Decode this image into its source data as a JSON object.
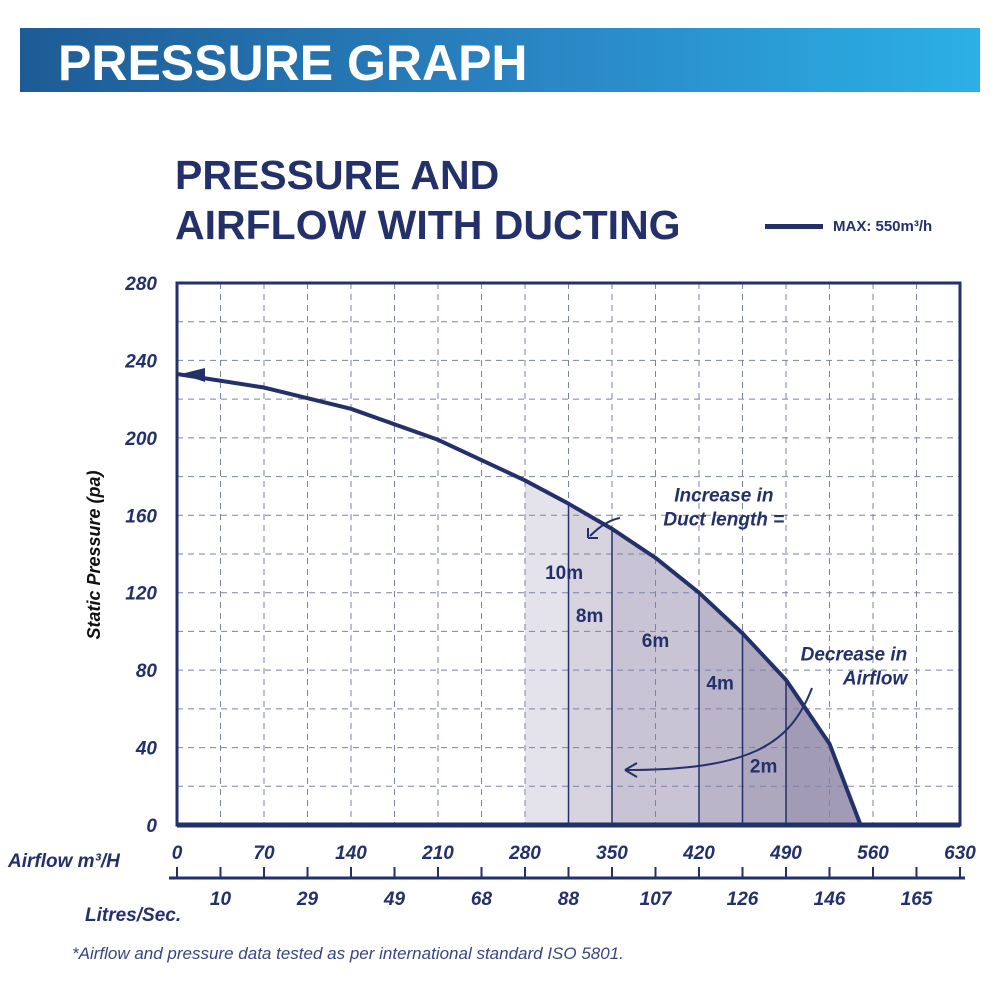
{
  "header": {
    "title": "PRESSURE GRAPH"
  },
  "chart_data": {
    "type": "area",
    "title": [
      "PRESSURE AND",
      "AIRFLOW WITH DUCTING"
    ],
    "legend": {
      "label": "MAX: 550m³/h",
      "placement": "top-right"
    },
    "xlabel": "Airflow m³/H",
    "x2label": "Litres/Sec.",
    "ylabel": "Static Pressure (pa)",
    "xlim": [
      0,
      630
    ],
    "ylim": [
      0,
      280
    ],
    "grid": true,
    "xticks": [
      0,
      70,
      140,
      210,
      280,
      350,
      420,
      490,
      560,
      630
    ],
    "x2ticks": [
      {
        "at": 35,
        "label": "10"
      },
      {
        "at": 105,
        "label": "29"
      },
      {
        "at": 175,
        "label": "49"
      },
      {
        "at": 245,
        "label": "68"
      },
      {
        "at": 315,
        "label": "88"
      },
      {
        "at": 385,
        "label": "107"
      },
      {
        "at": 455,
        "label": "126"
      },
      {
        "at": 525,
        "label": "146"
      },
      {
        "at": 595,
        "label": "165"
      }
    ],
    "yticks": [
      0,
      40,
      80,
      120,
      160,
      200,
      240,
      280
    ],
    "curve": {
      "x": [
        0,
        70,
        140,
        210,
        280,
        315,
        350,
        385,
        420,
        455,
        490,
        525,
        550
      ],
      "y": [
        233,
        226,
        215,
        199,
        178,
        166,
        153,
        138,
        120,
        99,
        75,
        42,
        0
      ]
    },
    "bands": [
      {
        "from": 280,
        "to": 315,
        "label": "10m",
        "color": "#e4e2ea"
      },
      {
        "from": 315,
        "to": 350,
        "label": "8m",
        "color": "#d6d3df"
      },
      {
        "from": 350,
        "to": 420,
        "label": "6m",
        "color": "#c8c4d4"
      },
      {
        "from": 420,
        "to": 455,
        "label": "4m",
        "color": "#bab5c9"
      },
      {
        "from": 455,
        "to": 490,
        "label": "",
        "color": "#aea8bf"
      },
      {
        "from": 490,
        "to": 560,
        "label": "2m",
        "color": "#a19bb5"
      }
    ],
    "band_labels": [
      {
        "label": "10m",
        "x": 297,
        "y": 127
      },
      {
        "label": "8m",
        "x": 332,
        "y": 105
      },
      {
        "label": "6m",
        "x": 385,
        "y": 92
      },
      {
        "label": "4m",
        "x": 437,
        "y": 70
      },
      {
        "label": "2m",
        "x": 472,
        "y": 27
      }
    ],
    "annotations": [
      {
        "text": [
          "Increase in",
          "Duct length ="
        ],
        "x": 440,
        "y": 167
      },
      {
        "text": [
          "Decrease in",
          "Airflow"
        ],
        "x": 590,
        "y": 85
      }
    ],
    "color": "#23306a"
  },
  "footnote": "*Airflow and pressure data tested as per international standard ISO 5801."
}
